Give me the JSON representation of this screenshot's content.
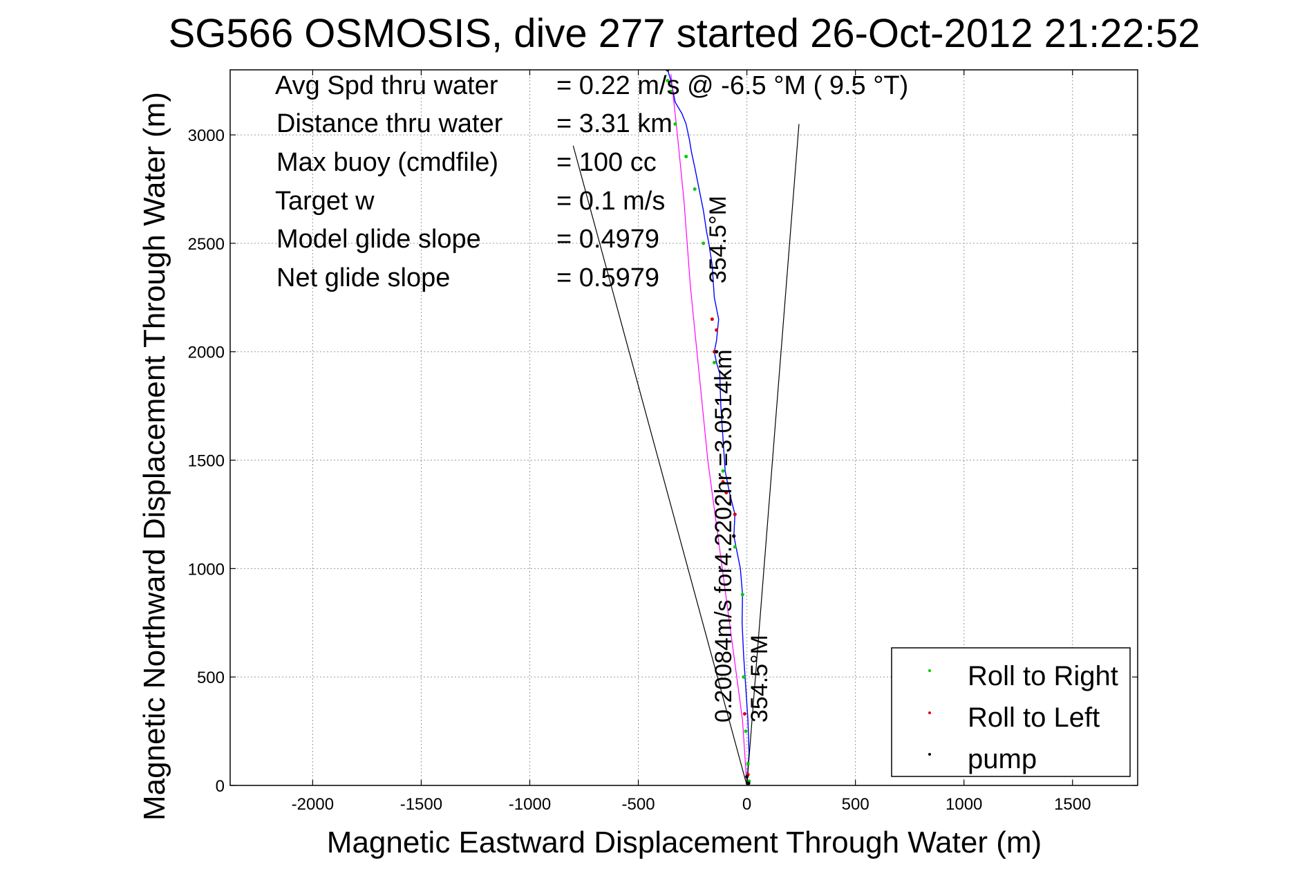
{
  "chart_data": {
    "type": "line",
    "title": "SG566 OSMOSIS, dive 277 started 26-Oct-2012 21:22:52",
    "xlabel": "Magnetic Eastward Displacement Through Water (m)",
    "ylabel": "Magnetic Northward Displacement Through Water (m)",
    "xlim": [
      -2380,
      1800
    ],
    "ylim": [
      0,
      3300
    ],
    "xticks": [
      -2000,
      -1500,
      -1000,
      -500,
      0,
      500,
      1000,
      1500
    ],
    "yticks": [
      0,
      500,
      1000,
      1500,
      2000,
      2500,
      3000
    ],
    "grid": true,
    "legend_position": "bottom-right",
    "stats": [
      {
        "label": "Avg Spd thru water",
        "value": "=  0.22 m/s @   -6.5 °M (  9.5 °T)"
      },
      {
        "label": "Distance thru water",
        "value": "=  3.31 km"
      },
      {
        "label": "Max buoy (cmdfile)",
        "value": "= 100 cc"
      },
      {
        "label": "Target w",
        "value": "= 0.1 m/s"
      },
      {
        "label": "Model glide slope",
        "value": "= 0.4979"
      },
      {
        "label": "Net glide slope",
        "value": "= 0.5979"
      }
    ],
    "annotations": [
      "354.5°M",
      "0.20084m/s for4.2202hr =3.0514km",
      "354.5°M"
    ],
    "series": [
      {
        "name": "",
        "color": "#0000ff",
        "style": "track",
        "x": [
          0,
          10,
          5,
          -5,
          -15,
          -22,
          -20,
          -30,
          -50,
          -60,
          -55,
          -80,
          -100,
          -110,
          -120,
          -125,
          -140,
          -150,
          -140,
          -130,
          -150,
          -160,
          -175,
          -185,
          -200,
          -220,
          -240,
          -255,
          -265,
          -280,
          -300,
          -330,
          -340,
          -350,
          -365
        ],
        "y": [
          0,
          150,
          300,
          450,
          600,
          750,
          880,
          1000,
          1100,
          1150,
          1250,
          1350,
          1450,
          1600,
          1750,
          1900,
          1950,
          2000,
          2050,
          2150,
          2250,
          2400,
          2500,
          2550,
          2650,
          2750,
          2850,
          2920,
          2980,
          3050,
          3100,
          3150,
          3200,
          3250,
          3300
        ]
      },
      {
        "name": "",
        "color": "#ff00ff",
        "style": "glide",
        "x": [
          0,
          -20,
          -60,
          -100,
          -140,
          -180,
          -220,
          -260,
          -290,
          -320,
          -350
        ],
        "y": [
          0,
          300,
          600,
          900,
          1200,
          1500,
          1900,
          2300,
          2700,
          3000,
          3280
        ]
      },
      {
        "name": "",
        "color": "#000000",
        "style": "wedge",
        "x": [
          -800,
          0,
          240
        ],
        "y": [
          2950,
          0,
          3050
        ]
      },
      {
        "name": "Roll to Right",
        "color": "#00cc00",
        "style": "markers",
        "x": [
          10,
          5,
          -5,
          -15,
          -20,
          -55,
          -110,
          -150,
          -200,
          -240,
          -280,
          -330,
          -350,
          -365
        ],
        "y": [
          20,
          100,
          250,
          500,
          880,
          1100,
          1450,
          1950,
          2500,
          2750,
          2900,
          3050,
          3200,
          3250
        ]
      },
      {
        "name": "Roll to Left",
        "color": "#dd0000",
        "style": "markers",
        "x": [
          5,
          -10,
          -60,
          -55,
          -80,
          -95,
          -110,
          -150,
          -140,
          -160
        ],
        "y": [
          50,
          330,
          1150,
          1250,
          1300,
          1350,
          1400,
          2000,
          2100,
          2150
        ]
      },
      {
        "name": "pump",
        "color": "#000000",
        "style": "markers",
        "x": [
          8,
          0,
          -60,
          -140,
          -365
        ],
        "y": [
          10,
          40,
          1150,
          2000,
          3300
        ]
      }
    ]
  }
}
